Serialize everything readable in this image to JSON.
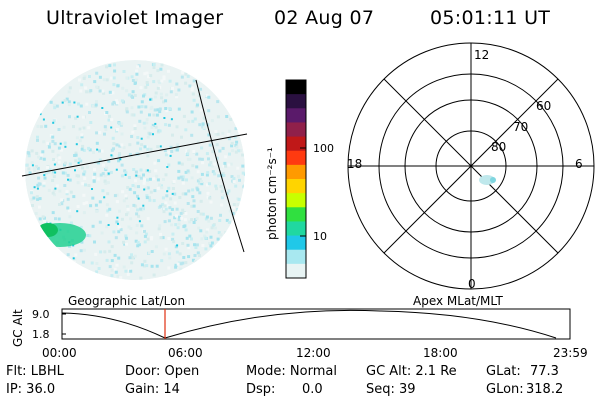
{
  "header": {
    "instrument": "Ultraviolet Imager",
    "date": "02 Aug 07",
    "time": "05:01:11 UT"
  },
  "colorbar": {
    "unit_label": "photon cm⁻²s⁻¹",
    "ticks": [
      "100",
      "10"
    ],
    "colors": [
      "#000000",
      "#2a1040",
      "#5a1a6a",
      "#90204a",
      "#c01818",
      "#ff3a10",
      "#ff9a00",
      "#ffd400",
      "#c8ff00",
      "#30e040",
      "#20d8a0",
      "#20c8e8",
      "#a8e8f0",
      "#e8f4f4"
    ]
  },
  "polar_plot": {
    "mlt_labels": {
      "top": "12",
      "left": "18",
      "right": "6",
      "bottom": "0"
    },
    "lat_labels": [
      "60",
      "70",
      "80"
    ]
  },
  "altitude_panel": {
    "left_title": "Geographic Lat/Lon",
    "right_title": "Apex MLat/MLT",
    "axis_label": "GC Alt",
    "y_ticks": [
      "9.0",
      "1.8"
    ],
    "x_ticks": [
      "00:00",
      "06:00",
      "12:00",
      "18:00",
      "23:59"
    ]
  },
  "info": {
    "flt": "Flt: LBHL",
    "ip": "IP: 36.0",
    "door": "Door: Open",
    "gain": "Gain: 14",
    "mode": "Mode: Normal",
    "dsp_label": "Dsp:",
    "dsp_value": "0.0",
    "gc_alt": "GC Alt: 2.1 Re",
    "seq": "Seq: 39",
    "glat_label": "GLat:",
    "glat_value": "77.3",
    "glon_label": "GLon:",
    "glon_value": "318.2"
  }
}
